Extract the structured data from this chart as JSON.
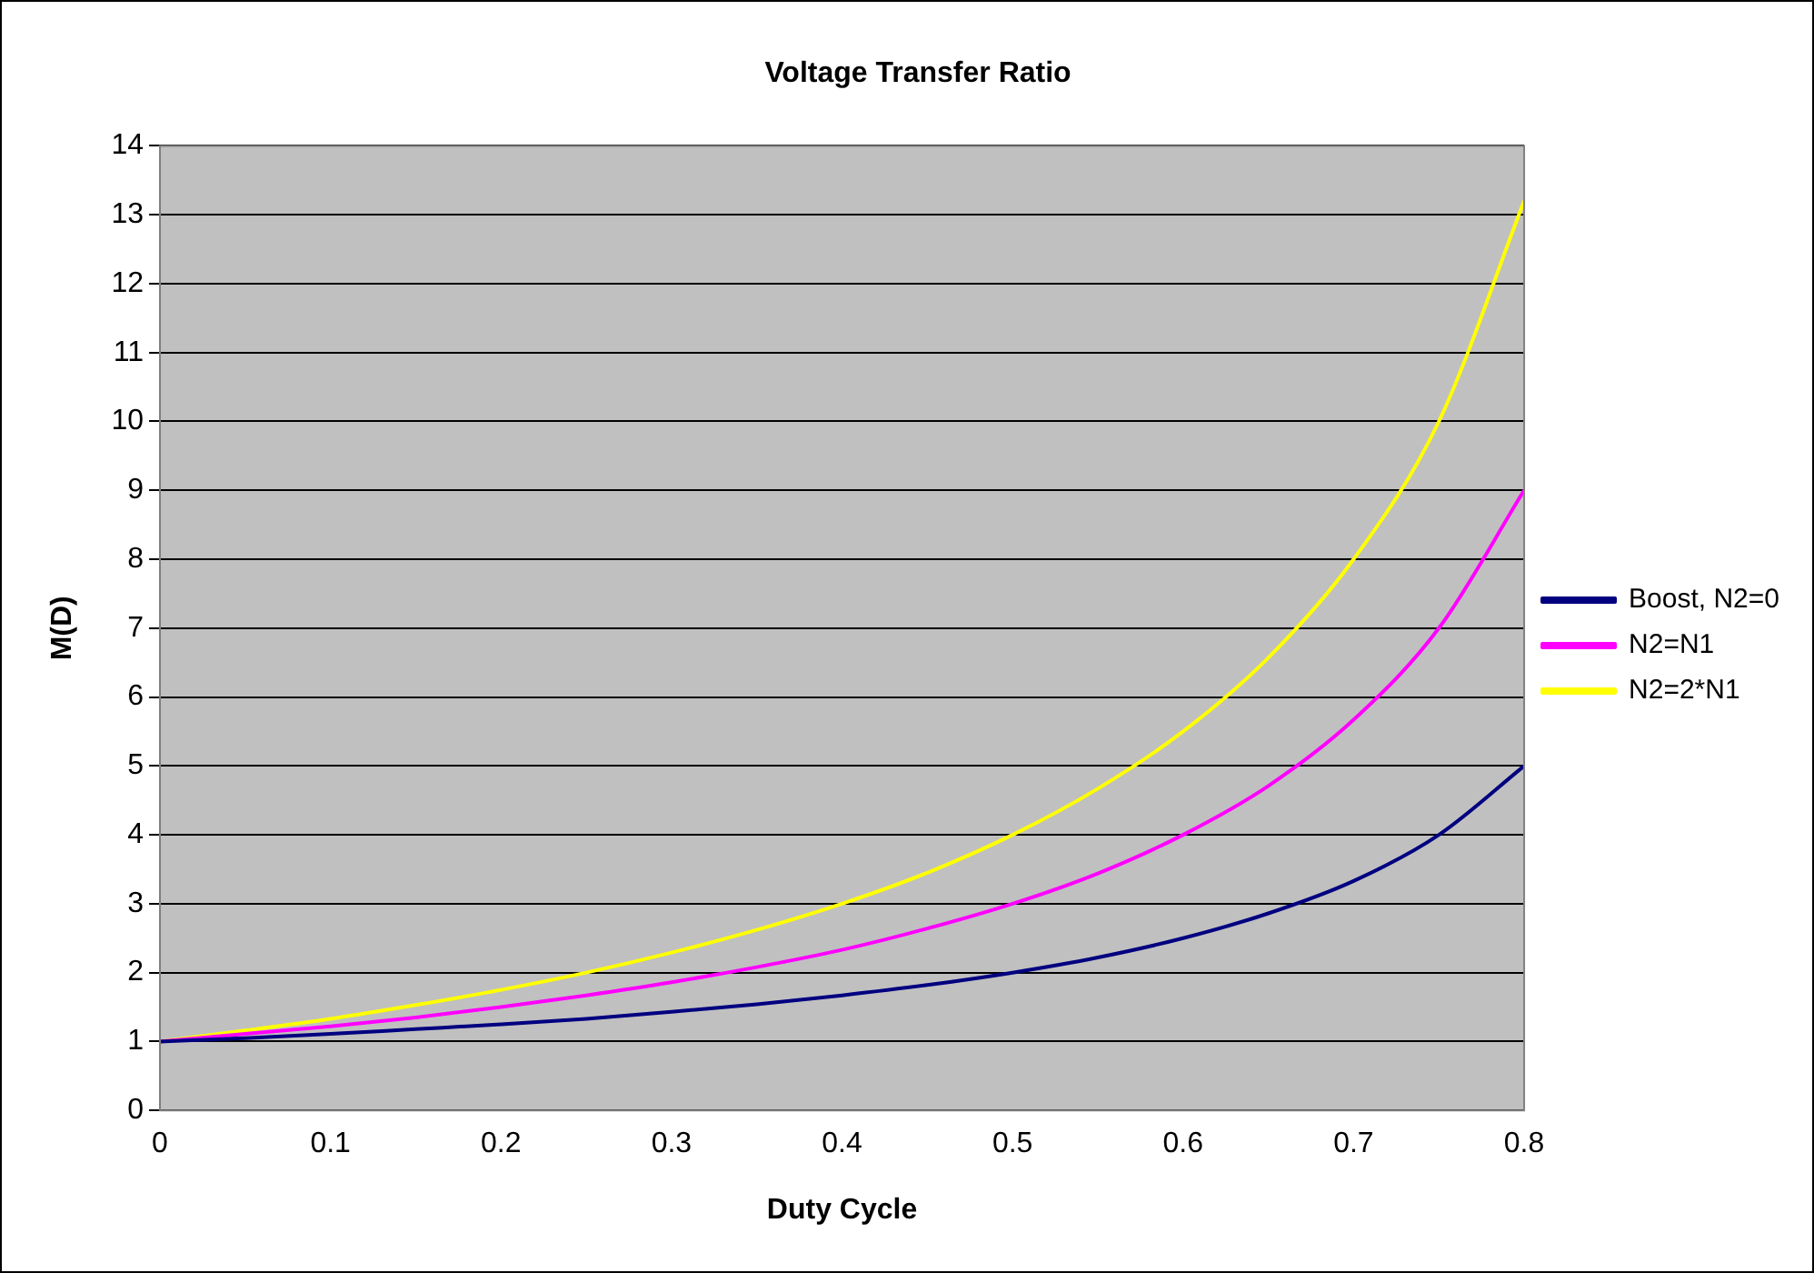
{
  "chart_data": {
    "type": "line",
    "title": "Voltage Transfer Ratio",
    "xlabel": "Duty Cycle",
    "ylabel": "M(D)",
    "x": [
      0,
      0.05,
      0.1,
      0.15,
      0.2,
      0.25,
      0.3,
      0.35,
      0.4,
      0.45,
      0.5,
      0.55,
      0.6,
      0.65,
      0.7,
      0.75,
      0.8
    ],
    "series": [
      {
        "name": "Boost, N2=0",
        "color": "#000080",
        "values": [
          1,
          1.05,
          1.11,
          1.18,
          1.25,
          1.33,
          1.43,
          1.54,
          1.67,
          1.82,
          2,
          2.22,
          2.5,
          2.86,
          3.33,
          4,
          5
        ]
      },
      {
        "name": "N2=N1",
        "color": "#ff00ff",
        "values": [
          1,
          1.11,
          1.22,
          1.35,
          1.5,
          1.67,
          1.86,
          2.08,
          2.33,
          2.64,
          3,
          3.44,
          4,
          4.71,
          5.67,
          7,
          9
        ]
      },
      {
        "name": "N2=2*N1",
        "color": "#ffff00",
        "values": [
          1,
          1.16,
          1.33,
          1.53,
          1.75,
          2,
          2.29,
          2.62,
          3,
          3.45,
          4,
          4.67,
          5.5,
          6.57,
          8,
          10,
          13.2
        ]
      }
    ],
    "xlim": [
      0,
      0.8
    ],
    "xticks": [
      0,
      0.1,
      0.2,
      0.3,
      0.4,
      0.5,
      0.6,
      0.7,
      0.8
    ],
    "ylim": [
      0,
      14
    ],
    "yticks": [
      0,
      1,
      2,
      3,
      4,
      5,
      6,
      7,
      8,
      9,
      10,
      11,
      12,
      13,
      14
    ],
    "grid": "y",
    "legend": "right",
    "marker": "none",
    "line_style": "solid"
  }
}
